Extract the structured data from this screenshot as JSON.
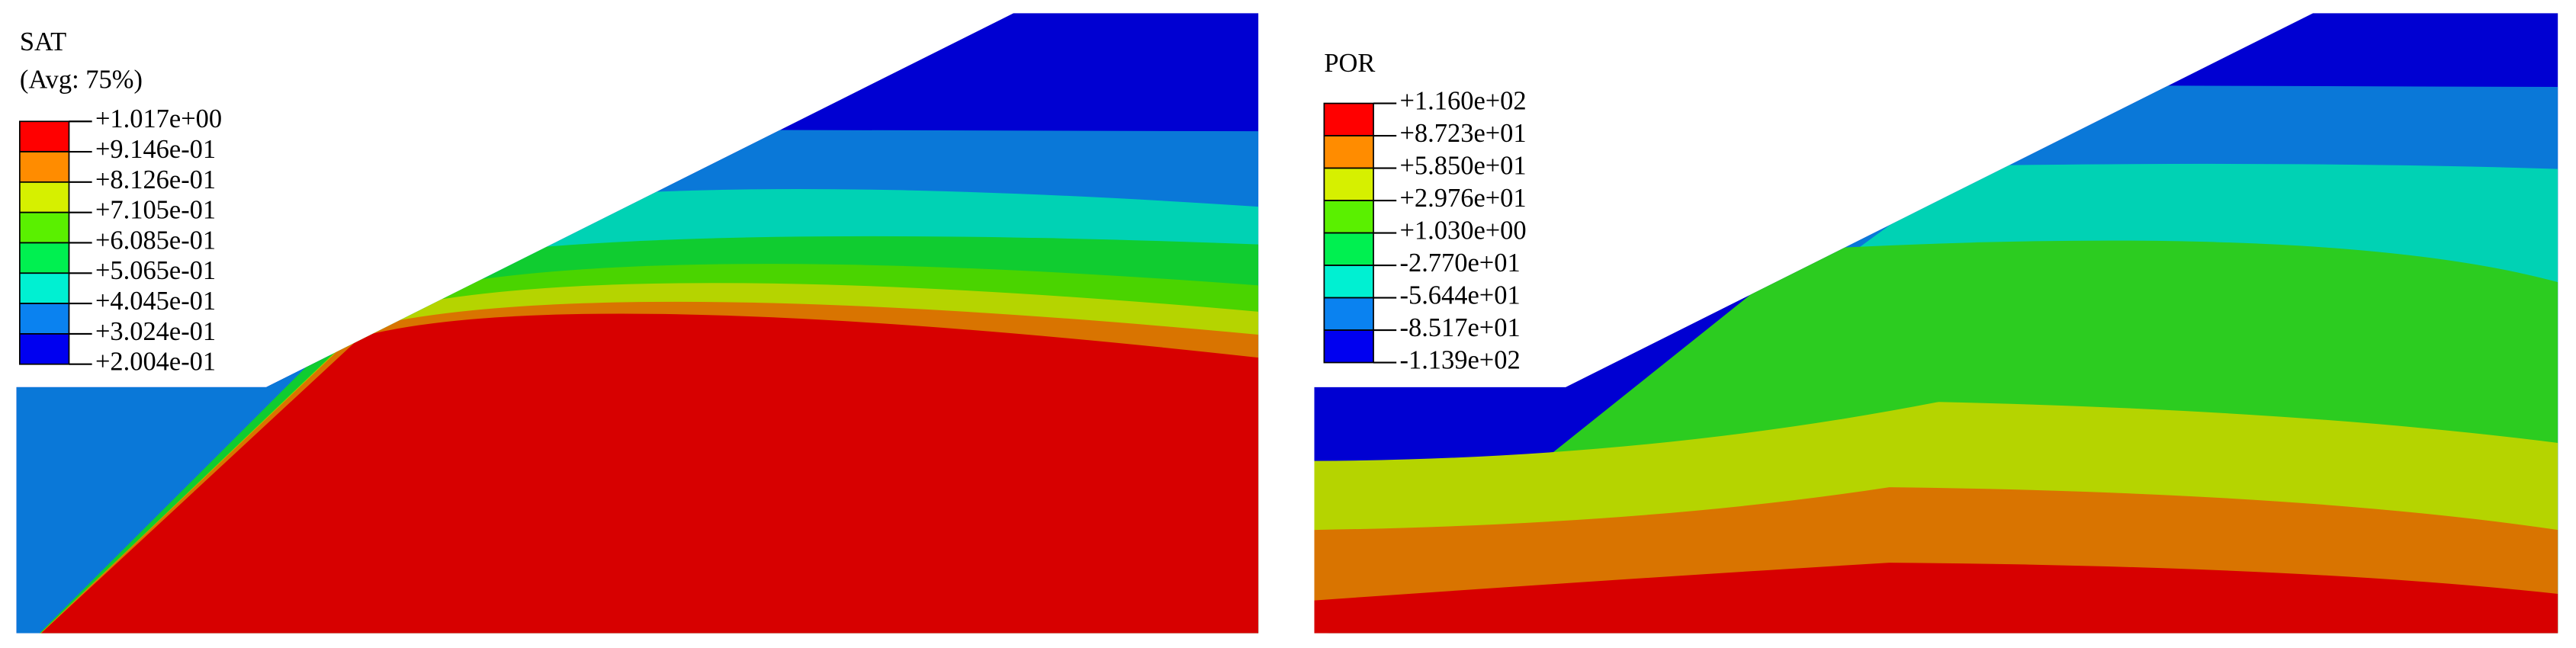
{
  "panels": [
    {
      "title": "SAT",
      "note": "(Avg: 75%)",
      "legend": [
        "+1.017e+00",
        "+9.146e-01",
        "+8.126e-01",
        "+7.105e-01",
        "+6.085e-01",
        "+5.065e-01",
        "+4.045e-01",
        "+3.024e-01",
        "+2.004e-01"
      ]
    },
    {
      "title": "POR",
      "legend": [
        "+1.160e+02",
        "+8.723e+01",
        "+5.850e+01",
        "+2.976e+01",
        "+1.030e+00",
        "-2.770e+01",
        "-5.644e+01",
        "-8.517e+01",
        "-1.139e+02"
      ]
    }
  ]
}
